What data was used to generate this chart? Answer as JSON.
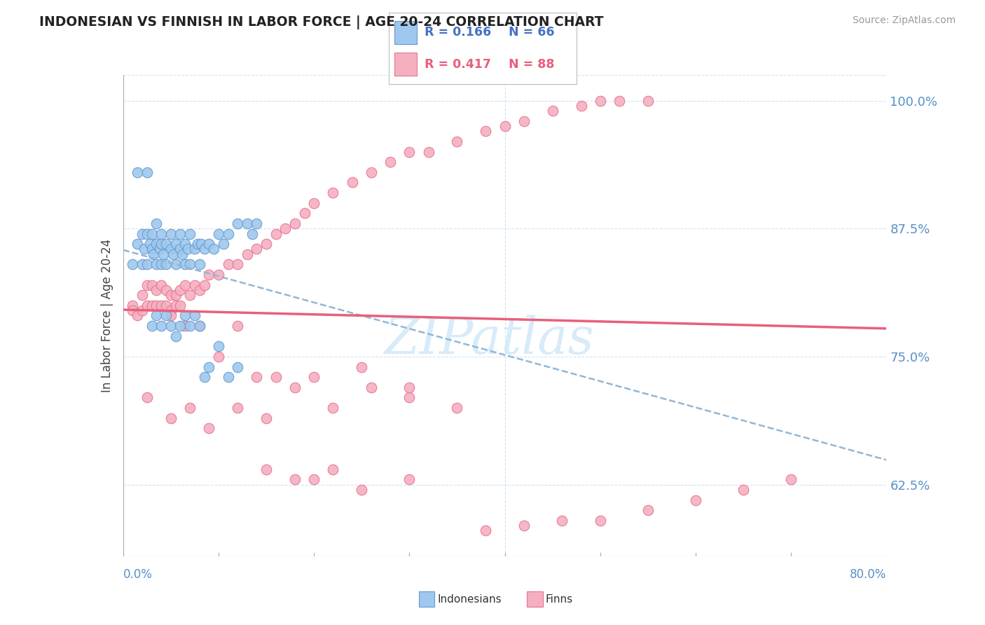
{
  "title": "INDONESIAN VS FINNISH IN LABOR FORCE | AGE 20-24 CORRELATION CHART",
  "source": "Source: ZipAtlas.com",
  "ylabel": "In Labor Force | Age 20-24",
  "xmin": 0.0,
  "xmax": 0.8,
  "ymin": 0.555,
  "ymax": 1.025,
  "yticks": [
    0.625,
    0.75,
    0.875,
    1.0
  ],
  "ytick_labels": [
    "62.5%",
    "75.0%",
    "87.5%",
    "100.0%"
  ],
  "blue_color": "#9EC8EE",
  "blue_edge": "#6699CC",
  "pink_color": "#F4B0C0",
  "pink_edge": "#E87090",
  "blue_line_color": "#4472C4",
  "pink_line_color": "#E8607A",
  "grid_color": "#D0E4F4",
  "r1_text": "R = 0.166",
  "n1_text": "N = 66",
  "r2_text": "R = 0.417",
  "n2_text": "N = 88",
  "legend_r_color": "#4472C4",
  "legend_r2_color": "#E8607A",
  "watermark_color": "#D0E8F8",
  "blue_x": [
    0.01,
    0.015,
    0.02,
    0.02,
    0.022,
    0.025,
    0.025,
    0.028,
    0.03,
    0.03,
    0.032,
    0.035,
    0.035,
    0.035,
    0.038,
    0.04,
    0.04,
    0.04,
    0.042,
    0.045,
    0.045,
    0.05,
    0.05,
    0.052,
    0.055,
    0.055,
    0.06,
    0.06,
    0.062,
    0.065,
    0.065,
    0.068,
    0.07,
    0.07,
    0.075,
    0.078,
    0.08,
    0.082,
    0.085,
    0.09,
    0.095,
    0.1,
    0.105,
    0.11,
    0.12,
    0.13,
    0.135,
    0.14,
    0.015,
    0.025,
    0.03,
    0.035,
    0.04,
    0.045,
    0.05,
    0.055,
    0.06,
    0.065,
    0.07,
    0.075,
    0.08,
    0.085,
    0.09,
    0.1,
    0.11,
    0.12
  ],
  "blue_y": [
    0.84,
    0.86,
    0.87,
    0.84,
    0.855,
    0.87,
    0.84,
    0.86,
    0.855,
    0.87,
    0.85,
    0.84,
    0.86,
    0.88,
    0.855,
    0.84,
    0.86,
    0.87,
    0.85,
    0.84,
    0.86,
    0.855,
    0.87,
    0.85,
    0.84,
    0.86,
    0.855,
    0.87,
    0.85,
    0.84,
    0.86,
    0.855,
    0.84,
    0.87,
    0.855,
    0.86,
    0.84,
    0.86,
    0.855,
    0.86,
    0.855,
    0.87,
    0.86,
    0.87,
    0.88,
    0.88,
    0.87,
    0.88,
    0.93,
    0.93,
    0.78,
    0.79,
    0.78,
    0.79,
    0.78,
    0.77,
    0.78,
    0.79,
    0.78,
    0.79,
    0.78,
    0.73,
    0.74,
    0.76,
    0.73,
    0.74
  ],
  "pink_x": [
    0.01,
    0.01,
    0.015,
    0.02,
    0.02,
    0.025,
    0.025,
    0.03,
    0.03,
    0.035,
    0.035,
    0.04,
    0.04,
    0.045,
    0.045,
    0.05,
    0.05,
    0.055,
    0.055,
    0.06,
    0.06,
    0.065,
    0.07,
    0.075,
    0.08,
    0.085,
    0.09,
    0.1,
    0.11,
    0.12,
    0.13,
    0.14,
    0.15,
    0.16,
    0.17,
    0.18,
    0.19,
    0.2,
    0.22,
    0.24,
    0.26,
    0.28,
    0.3,
    0.32,
    0.35,
    0.38,
    0.4,
    0.42,
    0.45,
    0.48,
    0.5,
    0.52,
    0.55,
    0.025,
    0.05,
    0.07,
    0.09,
    0.12,
    0.15,
    0.18,
    0.22,
    0.26,
    0.3,
    0.35,
    0.2,
    0.25,
    0.3,
    0.15,
    0.18,
    0.22,
    0.1,
    0.14,
    0.16,
    0.2,
    0.25,
    0.3,
    0.12,
    0.08,
    0.065,
    0.05,
    0.38,
    0.42,
    0.46,
    0.5,
    0.55,
    0.6,
    0.65,
    0.7
  ],
  "pink_y": [
    0.8,
    0.795,
    0.79,
    0.795,
    0.81,
    0.8,
    0.82,
    0.8,
    0.82,
    0.815,
    0.8,
    0.82,
    0.8,
    0.815,
    0.8,
    0.81,
    0.795,
    0.81,
    0.8,
    0.815,
    0.8,
    0.82,
    0.81,
    0.82,
    0.815,
    0.82,
    0.83,
    0.83,
    0.84,
    0.84,
    0.85,
    0.855,
    0.86,
    0.87,
    0.875,
    0.88,
    0.89,
    0.9,
    0.91,
    0.92,
    0.93,
    0.94,
    0.95,
    0.95,
    0.96,
    0.97,
    0.975,
    0.98,
    0.99,
    0.995,
    1.0,
    1.0,
    1.0,
    0.71,
    0.69,
    0.7,
    0.68,
    0.7,
    0.69,
    0.72,
    0.7,
    0.72,
    0.71,
    0.7,
    0.63,
    0.62,
    0.63,
    0.64,
    0.63,
    0.64,
    0.75,
    0.73,
    0.73,
    0.73,
    0.74,
    0.72,
    0.78,
    0.78,
    0.78,
    0.79,
    0.58,
    0.585,
    0.59,
    0.59,
    0.6,
    0.61,
    0.62,
    0.63
  ]
}
